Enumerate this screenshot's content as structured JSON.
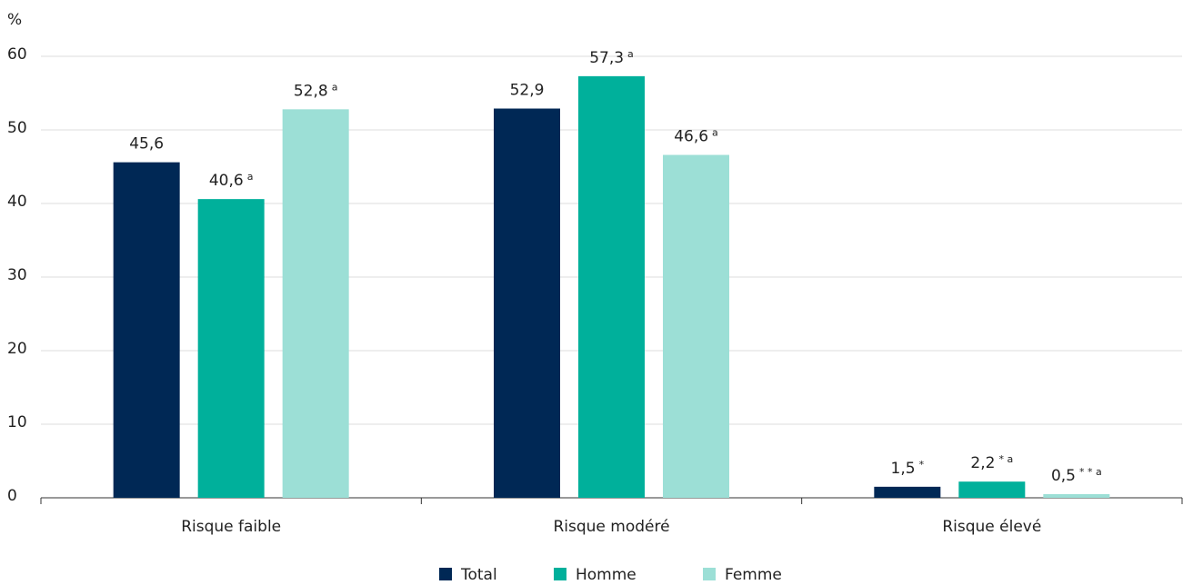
{
  "chart_data": {
    "type": "bar",
    "y_label": "%",
    "categories": [
      "Risque faible",
      "Risque modéré",
      "Risque élevé"
    ],
    "series": [
      {
        "name": "Total",
        "color": "#002855",
        "values": [
          45.6,
          52.9,
          1.5
        ],
        "value_labels": [
          "45,6",
          "52,9",
          "1,5"
        ],
        "markers": [
          null,
          null,
          "*"
        ]
      },
      {
        "name": "Homme",
        "color": "#00b09b",
        "values": [
          40.6,
          57.3,
          2.2
        ],
        "value_labels": [
          "40,6",
          "57,3",
          "2,2"
        ],
        "markers": [
          "a",
          "a",
          "* a"
        ]
      },
      {
        "name": "Femme",
        "color": "#9cdfd6",
        "values": [
          52.8,
          46.6,
          0.5
        ],
        "value_labels": [
          "52,8",
          "46,6",
          "0,5"
        ],
        "markers": [
          "a",
          "a",
          "* * a"
        ]
      }
    ],
    "ylim": [
      0,
      60
    ],
    "yticks": [
      0,
      10,
      20,
      30,
      40,
      50,
      60
    ],
    "grid": true,
    "legend": "bottom"
  }
}
